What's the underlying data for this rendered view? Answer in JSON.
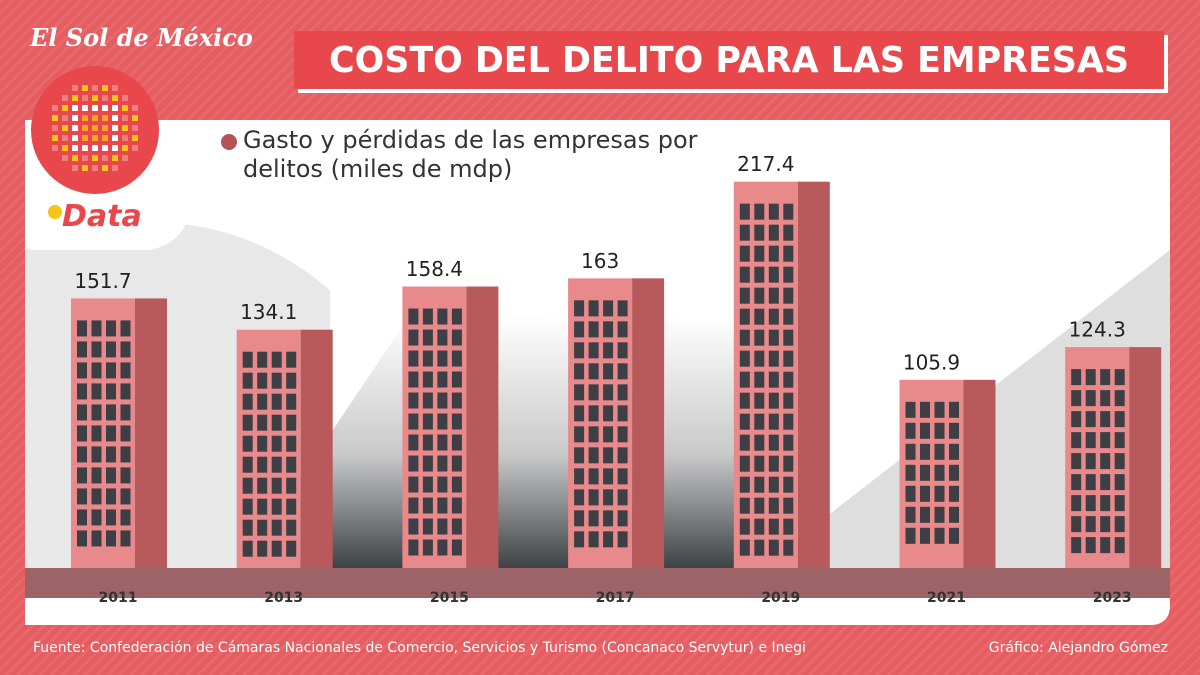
{
  "brand": {
    "name": "El Sol de México",
    "section": "Data"
  },
  "chart_data": {
    "type": "bar",
    "title": "COSTO DEL DELITO PARA LAS EMPRESAS",
    "subtitle": "Gasto y pérdidas de las empresas por delitos (miles de mdp)",
    "categories": [
      "2011",
      "2013",
      "2015",
      "2017",
      "2019",
      "2021",
      "2023"
    ],
    "values": [
      151.7,
      134.1,
      158.4,
      163,
      217.4,
      105.9,
      124.3
    ],
    "color": "#e8898c"
  },
  "footer": {
    "source": "Fuente: Confederación de Cámaras Nacionales de Comercio, Servicios y Turismo (Concanaco Servytur) e Inegi",
    "credit": "Gráfico: Alejandro Gómez"
  }
}
